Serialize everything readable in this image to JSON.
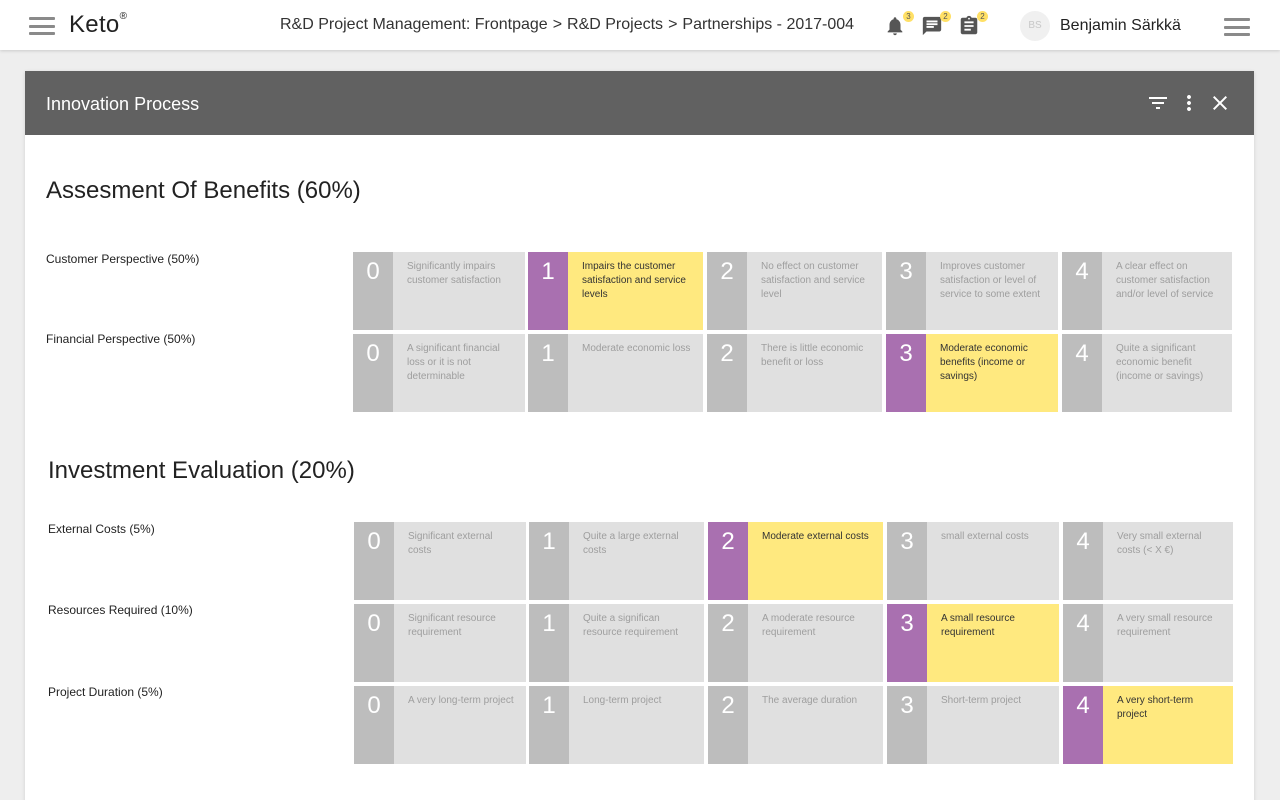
{
  "header": {
    "logo": "Keto",
    "logo_mark": "®",
    "breadcrumb": [
      "R&D Project Management: Frontpage",
      "R&D Projects",
      "Partnerships - 2017-004"
    ],
    "breadcrumb_sep": ">",
    "notifications": {
      "icon": "bell-icon",
      "count": "3"
    },
    "messages": {
      "icon": "chat-icon",
      "count": "2"
    },
    "tasks": {
      "icon": "clipboard-icon",
      "count": "2"
    },
    "user": {
      "initials": "BS",
      "name": "Benjamin Särkkä"
    }
  },
  "panel": {
    "title": "Innovation Process",
    "icons": [
      "filter-icon",
      "more-vertical-icon",
      "close-icon"
    ]
  },
  "colors": {
    "selected_background": "#ffe97f",
    "selected_number": "#a970b0",
    "unselected_background": "#e0e0e0",
    "unselected_number": "#bdbdbd",
    "panel_header": "#616161"
  },
  "sections": [
    {
      "title": "Assesment Of Benefits (60%)",
      "rows": [
        {
          "label": "Customer Perspective (50%)",
          "selected": 1,
          "options": [
            {
              "score": "0",
              "text": "Significantly impairs customer satisfaction"
            },
            {
              "score": "1",
              "text": "Impairs the customer satisfaction and service levels"
            },
            {
              "score": "2",
              "text": "No effect on customer satisfaction and service level"
            },
            {
              "score": "3",
              "text": "Improves customer satisfaction or level of service to some extent"
            },
            {
              "score": "4",
              "text": "A clear effect on customer satisfaction and/or level of service"
            }
          ]
        },
        {
          "label": "Financial Perspective (50%)",
          "selected": 3,
          "options": [
            {
              "score": "0",
              "text": "A significant financial loss or it is not determinable"
            },
            {
              "score": "1",
              "text": "Moderate economic loss"
            },
            {
              "score": "2",
              "text": "There is little economic benefit or loss"
            },
            {
              "score": "3",
              "text": "Moderate economic benefits (income or savings)"
            },
            {
              "score": "4",
              "text": "Quite a significant economic benefit (income or savings)"
            }
          ]
        }
      ]
    },
    {
      "title": "Investment Evaluation (20%)",
      "rows": [
        {
          "label": "External Costs (5%)",
          "selected": 2,
          "options": [
            {
              "score": "0",
              "text": "Significant external costs"
            },
            {
              "score": "1",
              "text": "Quite a large external costs"
            },
            {
              "score": "2",
              "text": "Moderate external costs"
            },
            {
              "score": "3",
              "text": "small external costs"
            },
            {
              "score": "4",
              "text": "Very small external costs (< X €)"
            }
          ]
        },
        {
          "label": "Resources Required (10%)",
          "selected": 3,
          "options": [
            {
              "score": "0",
              "text": "Significant resource requirement"
            },
            {
              "score": "1",
              "text": "Quite a significan resource requirement"
            },
            {
              "score": "2",
              "text": "A moderate resource requirement"
            },
            {
              "score": "3",
              "text": "A small resource requirement"
            },
            {
              "score": "4",
              "text": "A very small resource requirement"
            }
          ]
        },
        {
          "label": "Project Duration (5%)",
          "selected": 4,
          "options": [
            {
              "score": "0",
              "text": "A very long-term project"
            },
            {
              "score": "1",
              "text": "Long-term project"
            },
            {
              "score": "2",
              "text": "The average duration"
            },
            {
              "score": "3",
              "text": "Short-term project"
            },
            {
              "score": "4",
              "text": "A very short-term project"
            }
          ]
        }
      ]
    }
  ]
}
